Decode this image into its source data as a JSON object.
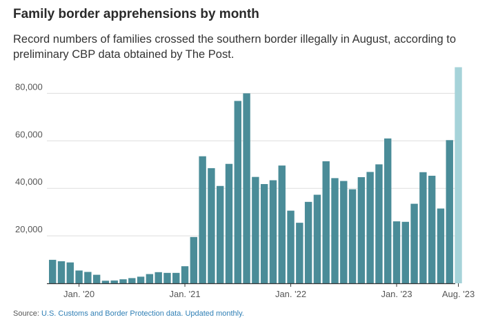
{
  "title": "Family border apprehensions by month",
  "subtitle": "Record numbers of families crossed the southern border illegally in August, according to preliminary CBP data obtained by The Post.",
  "footer": {
    "prefix": "Source: ",
    "source_text": "U.S. Customs and Border Protection data. Updated monthly."
  },
  "colors": {
    "bar": "#4a8c98",
    "highlight": "#a6d3d9",
    "grid": "#dddddd",
    "axis": "#333333",
    "label": "#555555"
  },
  "chart_data": {
    "type": "bar",
    "title": "Family border apprehensions by month",
    "x_start": "Oct. 2019",
    "x_end": "Aug. 2023",
    "x_tick_labels": [
      "Jan. '20",
      "Jan. '21",
      "Jan. '22",
      "Jan. '23",
      "Aug. '23"
    ],
    "x_tick_indices": [
      3,
      15,
      27,
      39,
      46
    ],
    "y_ticks": [
      20000,
      40000,
      60000,
      80000
    ],
    "y_tick_labels": [
      "20,000",
      "40,000",
      "60,000",
      "80,000"
    ],
    "ylim": [
      0,
      91000
    ],
    "grid": true,
    "highlight_index": 46,
    "values": [
      9900,
      9300,
      8800,
      5400,
      4800,
      3600,
      1100,
      1200,
      1700,
      2200,
      2800,
      3900,
      4700,
      4400,
      4400,
      7200,
      19500,
      53500,
      48500,
      41000,
      50300,
      76800,
      80000,
      44800,
      41800,
      43400,
      49600,
      30600,
      25500,
      34300,
      37300,
      51400,
      44300,
      43100,
      39600,
      44700,
      46900,
      50100,
      61000,
      26100,
      25900,
      33500,
      46800,
      45300,
      31500,
      60300,
      91000
    ]
  }
}
